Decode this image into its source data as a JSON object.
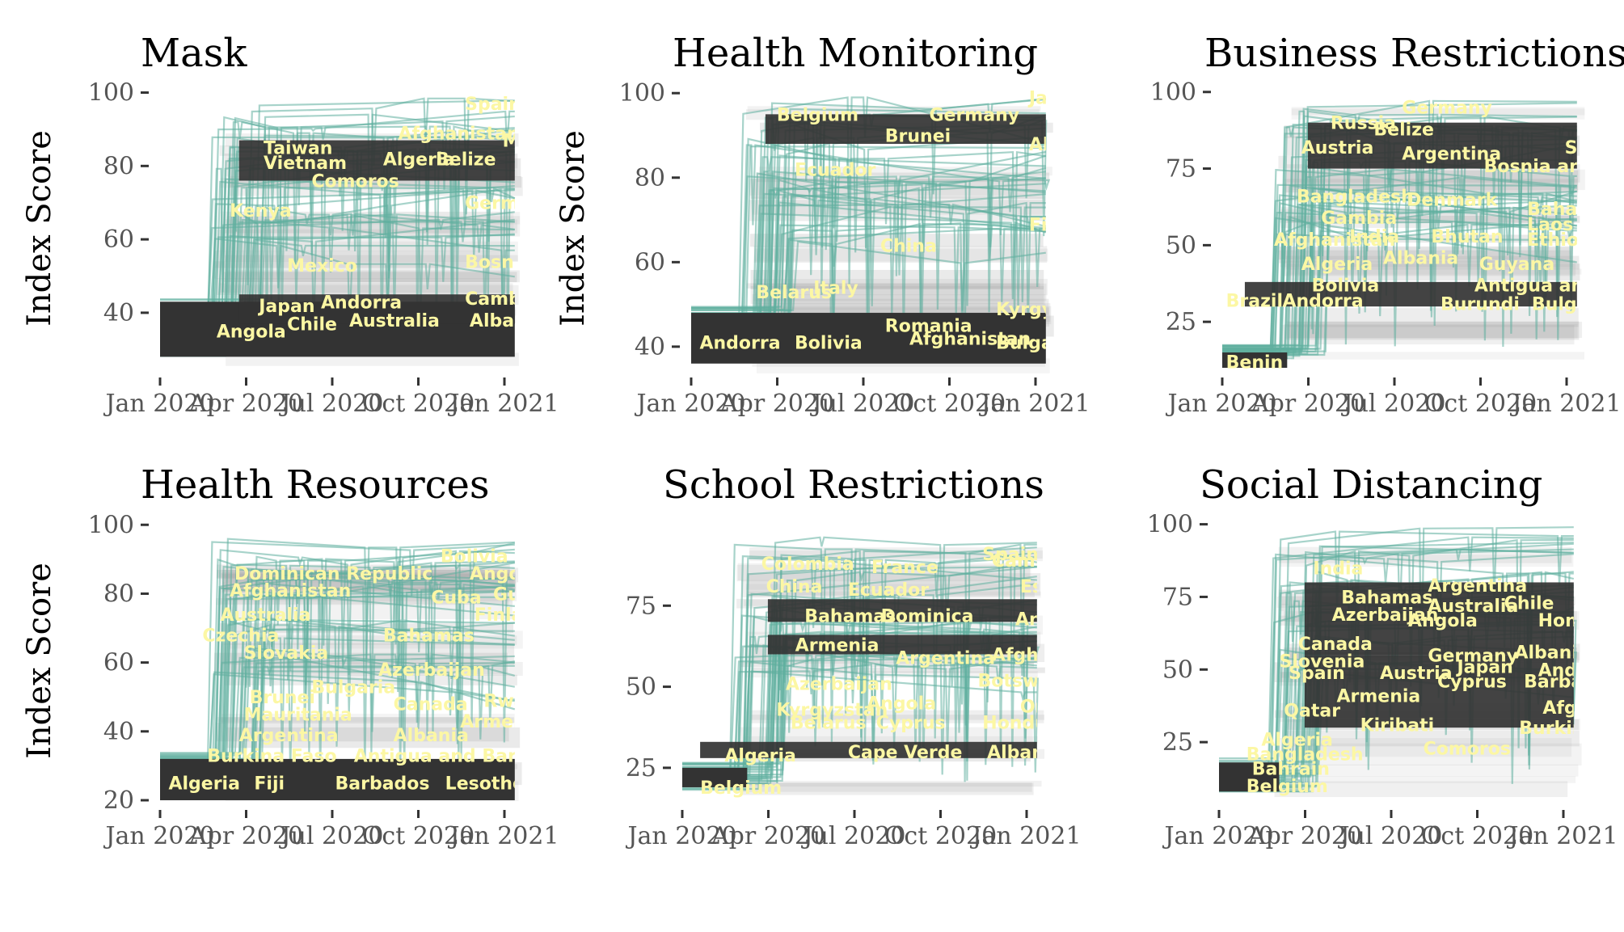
{
  "palette": {
    "band": "#333333",
    "line": "#5fae9f",
    "label": "#fcf7a4",
    "haze": "#9a9a9a"
  },
  "chart_data": [
    {
      "type": "line",
      "title": "Mask",
      "ylabel": "Index Score",
      "xlabel": "",
      "ylim": [
        25,
        101
      ],
      "yticks": [
        40,
        60,
        80,
        100
      ],
      "x_ticks": [
        "Jan 2020",
        "Apr 2020",
        "Jul 2020",
        "Oct 2020",
        "Jan 2021"
      ],
      "x_range": [
        "2020-01-01",
        "2021-01-12"
      ],
      "base": {
        "low": 28,
        "high": 43,
        "start": "2020-01-01",
        "end": "2021-01-12"
      },
      "bands": [
        {
          "low": 76,
          "high": 87,
          "start": "2020-03-25",
          "end": "2021-01-12"
        },
        {
          "low": 37,
          "high": 45,
          "start": "2020-03-25",
          "end": "2021-01-12"
        }
      ],
      "labels": [
        {
          "name": "Spain",
          "x": "2020-11-20",
          "y": 97
        },
        {
          "name": "Taiwan",
          "x": "2020-04-20",
          "y": 85
        },
        {
          "name": "Afghanistan",
          "x": "2020-09-10",
          "y": 89
        },
        {
          "name": "Myanmar",
          "x": "2020-12-30",
          "y": 87
        },
        {
          "name": "Vietnam",
          "x": "2020-04-20",
          "y": 81
        },
        {
          "name": "Algeria",
          "x": "2020-08-25",
          "y": 82
        },
        {
          "name": "Belize",
          "x": "2020-10-20",
          "y": 82
        },
        {
          "name": "Comoros",
          "x": "2020-06-10",
          "y": 76
        },
        {
          "name": "Germany",
          "x": "2020-11-20",
          "y": 70
        },
        {
          "name": "Kenya",
          "x": "2020-03-15",
          "y": 68
        },
        {
          "name": "Mexico",
          "x": "2020-05-15",
          "y": 53
        },
        {
          "name": "Bosnia and Herzegovina",
          "x": "2020-11-20",
          "y": 54
        },
        {
          "name": "Japan",
          "x": "2020-04-15",
          "y": 42
        },
        {
          "name": "Andorra",
          "x": "2020-06-20",
          "y": 43
        },
        {
          "name": "Cambodia",
          "x": "2020-11-20",
          "y": 44
        },
        {
          "name": "Chile",
          "x": "2020-05-15",
          "y": 37
        },
        {
          "name": "Australia",
          "x": "2020-07-20",
          "y": 38
        },
        {
          "name": "Albania",
          "x": "2020-11-25",
          "y": 38
        },
        {
          "name": "Angola",
          "x": "2020-03-01",
          "y": 35
        }
      ]
    },
    {
      "type": "line",
      "title": "Health Monitoring",
      "ylabel": "Index Score",
      "xlabel": "",
      "ylim": [
        35,
        101
      ],
      "yticks": [
        40,
        60,
        80,
        100
      ],
      "x_ticks": [
        "Jan 2020",
        "Apr 2020",
        "Jul 2020",
        "Oct 2020",
        "Jan 2021"
      ],
      "x_range": [
        "2020-01-01",
        "2021-01-12"
      ],
      "base": {
        "low": 36,
        "high": 48,
        "start": "2020-01-01",
        "end": "2021-01-12"
      },
      "bands": [
        {
          "low": 88,
          "high": 95,
          "start": "2020-03-20",
          "end": "2021-01-12"
        }
      ],
      "labels": [
        {
          "name": "Japan",
          "x": "2020-12-25",
          "y": 99
        },
        {
          "name": "Belgium",
          "x": "2020-04-01",
          "y": 95
        },
        {
          "name": "Germany",
          "x": "2020-09-10",
          "y": 95
        },
        {
          "name": "Brunei",
          "x": "2020-07-25",
          "y": 90
        },
        {
          "name": "Algeria",
          "x": "2020-12-25",
          "y": 88
        },
        {
          "name": "Ecuador",
          "x": "2020-04-20",
          "y": 82
        },
        {
          "name": "Finland",
          "x": "2020-12-25",
          "y": 69
        },
        {
          "name": "China",
          "x": "2020-07-20",
          "y": 64
        },
        {
          "name": "Belarus",
          "x": "2020-03-10",
          "y": 53
        },
        {
          "name": "Italy",
          "x": "2020-05-10",
          "y": 54
        },
        {
          "name": "Kyrgyzstan",
          "x": "2020-11-20",
          "y": 49
        },
        {
          "name": "Romania",
          "x": "2020-07-25",
          "y": 45
        },
        {
          "name": "Andorra",
          "x": "2020-01-10",
          "y": 41
        },
        {
          "name": "Bolivia",
          "x": "2020-04-20",
          "y": 41
        },
        {
          "name": "Afghanistan",
          "x": "2020-08-20",
          "y": 42
        },
        {
          "name": "Bulgaria",
          "x": "2020-11-20",
          "y": 41
        }
      ]
    },
    {
      "type": "line",
      "title": "Business Restrictions",
      "ylabel": "",
      "xlabel": "",
      "ylim": [
        10,
        101
      ],
      "yticks": [
        25,
        50,
        75,
        100
      ],
      "x_ticks": [
        "Jan 2020",
        "Apr 2020",
        "Jul 2020",
        "Oct 2020",
        "Jan 2021"
      ],
      "x_range": [
        "2020-01-01",
        "2021-01-12"
      ],
      "base": {
        "low": 10,
        "high": 15,
        "start": "2020-01-01",
        "end": "2020-03-10"
      },
      "bands": [
        {
          "low": 30,
          "high": 38,
          "start": "2020-01-25",
          "end": "2021-01-12"
        },
        {
          "low": 75,
          "high": 90,
          "start": "2020-04-01",
          "end": "2021-01-12"
        }
      ],
      "labels": [
        {
          "name": "Germany",
          "x": "2020-07-10",
          "y": 95
        },
        {
          "name": "Russia",
          "x": "2020-04-25",
          "y": 90
        },
        {
          "name": "Belize",
          "x": "2020-06-10",
          "y": 88
        },
        {
          "name": "Spain",
          "x": "2020-12-30",
          "y": 82
        },
        {
          "name": "Austria",
          "x": "2020-03-25",
          "y": 82
        },
        {
          "name": "Argentina",
          "x": "2020-07-10",
          "y": 80
        },
        {
          "name": "Bosnia and Herzegovina",
          "x": "2020-10-05",
          "y": 76
        },
        {
          "name": "Bangladesh",
          "x": "2020-03-20",
          "y": 66
        },
        {
          "name": "Denmark",
          "x": "2020-07-15",
          "y": 65
        },
        {
          "name": "Bahamas",
          "x": "2020-11-20",
          "y": 62
        },
        {
          "name": "Gambia",
          "x": "2020-04-15",
          "y": 59
        },
        {
          "name": "Laos",
          "x": "2020-11-20",
          "y": 57
        },
        {
          "name": "Afghanistan",
          "x": "2020-02-25",
          "y": 52
        },
        {
          "name": "India",
          "x": "2020-05-15",
          "y": 53
        },
        {
          "name": "Bhutan",
          "x": "2020-08-10",
          "y": 53
        },
        {
          "name": "Ethiopia",
          "x": "2020-11-20",
          "y": 52
        },
        {
          "name": "Algeria",
          "x": "2020-03-25",
          "y": 44
        },
        {
          "name": "Albania",
          "x": "2020-06-20",
          "y": 46
        },
        {
          "name": "Guyana",
          "x": "2020-09-30",
          "y": 44
        },
        {
          "name": "Bolivia",
          "x": "2020-04-05",
          "y": 37
        },
        {
          "name": "Antigua and Barbuda",
          "x": "2020-09-25",
          "y": 37
        },
        {
          "name": "Brazil",
          "x": "2020-01-05",
          "y": 32
        },
        {
          "name": "Andorra",
          "x": "2020-03-05",
          "y": 32
        },
        {
          "name": "Burundi",
          "x": "2020-08-20",
          "y": 31
        },
        {
          "name": "Bulgaria",
          "x": "2020-11-25",
          "y": 31
        },
        {
          "name": "Benin",
          "x": "2020-01-05",
          "y": 12
        }
      ]
    },
    {
      "type": "line",
      "title": "Health Resources",
      "ylabel": "Index Score",
      "xlabel": "",
      "ylim": [
        20,
        101
      ],
      "yticks": [
        20,
        40,
        60,
        80,
        100
      ],
      "x_ticks": [
        "Jan 2020",
        "Apr 2020",
        "Jul 2020",
        "Oct 2020",
        "Jan 2021"
      ],
      "x_range": [
        "2020-01-01",
        "2021-01-12"
      ],
      "base": {
        "low": 20,
        "high": 32,
        "start": "2020-01-01",
        "end": "2021-01-12"
      },
      "bands": [],
      "labels": [
        {
          "name": "Bolivia",
          "x": "2020-10-25",
          "y": 91
        },
        {
          "name": "Dominican Republic",
          "x": "2020-03-20",
          "y": 86
        },
        {
          "name": "Angola",
          "x": "2020-11-25",
          "y": 86
        },
        {
          "name": "Afghanistan",
          "x": "2020-03-15",
          "y": 81
        },
        {
          "name": "Cuba",
          "x": "2020-10-15",
          "y": 79
        },
        {
          "name": "Guatemala",
          "x": "2020-12-20",
          "y": 80
        },
        {
          "name": "Australia",
          "x": "2020-03-05",
          "y": 74
        },
        {
          "name": "Finland",
          "x": "2020-11-30",
          "y": 74
        },
        {
          "name": "Czechia",
          "x": "2020-02-15",
          "y": 68
        },
        {
          "name": "Bahamas",
          "x": "2020-08-25",
          "y": 68
        },
        {
          "name": "Slovakia",
          "x": "2020-03-30",
          "y": 63
        },
        {
          "name": "Azerbaijan",
          "x": "2020-08-20",
          "y": 58
        },
        {
          "name": "Bulgaria",
          "x": "2020-06-10",
          "y": 53
        },
        {
          "name": "Brunei",
          "x": "2020-04-05",
          "y": 50
        },
        {
          "name": "Canada",
          "x": "2020-09-05",
          "y": 48
        },
        {
          "name": "Rwanda",
          "x": "2020-12-10",
          "y": 49
        },
        {
          "name": "Mauritania",
          "x": "2020-03-30",
          "y": 45
        },
        {
          "name": "Armenia",
          "x": "2020-11-15",
          "y": 43
        },
        {
          "name": "Argentina",
          "x": "2020-03-25",
          "y": 39
        },
        {
          "name": "Albania",
          "x": "2020-09-05",
          "y": 39
        },
        {
          "name": "Burkina Faso",
          "x": "2020-02-20",
          "y": 33
        },
        {
          "name": "Antigua and Barbuda",
          "x": "2020-07-25",
          "y": 33
        },
        {
          "name": "Algeria",
          "x": "2020-01-10",
          "y": 25
        },
        {
          "name": "Fiji",
          "x": "2020-04-10",
          "y": 25
        },
        {
          "name": "Barbados",
          "x": "2020-07-05",
          "y": 25
        },
        {
          "name": "Lesotho",
          "x": "2020-10-30",
          "y": 25
        }
      ]
    },
    {
      "type": "line",
      "title": "School Restrictions",
      "ylabel": "",
      "xlabel": "",
      "ylim": [
        15,
        101
      ],
      "yticks": [
        25,
        50,
        75
      ],
      "x_ticks": [
        "Jan 2020",
        "Apr 2020",
        "Jul 2020",
        "Oct 2020",
        "Jan 2021"
      ],
      "x_range": [
        "2020-01-01",
        "2021-01-12"
      ],
      "base": {
        "low": 19,
        "high": 25,
        "start": "2020-01-01",
        "end": "2020-03-10"
      },
      "bands": [
        {
          "low": 28,
          "high": 33,
          "start": "2020-01-20",
          "end": "2021-01-12"
        },
        {
          "low": 70,
          "high": 77,
          "start": "2020-04-01",
          "end": "2021-01-12"
        },
        {
          "low": 60,
          "high": 66,
          "start": "2020-04-01",
          "end": "2021-01-12"
        }
      ],
      "labels": [
        {
          "name": "Spain",
          "x": "2020-11-15",
          "y": 91
        },
        {
          "name": "Colombia",
          "x": "2020-03-25",
          "y": 88
        },
        {
          "name": "France",
          "x": "2020-07-20",
          "y": 87
        },
        {
          "name": "Cambodia",
          "x": "2020-11-25",
          "y": 89
        },
        {
          "name": "China",
          "x": "2020-03-30",
          "y": 81
        },
        {
          "name": "Ecuador",
          "x": "2020-06-25",
          "y": 80
        },
        {
          "name": "Eswatini",
          "x": "2020-12-25",
          "y": 81
        },
        {
          "name": "Bahamas",
          "x": "2020-05-10",
          "y": 72
        },
        {
          "name": "Dominica",
          "x": "2020-07-30",
          "y": 72
        },
        {
          "name": "Andorra",
          "x": "2020-12-20",
          "y": 71
        },
        {
          "name": "Armenia",
          "x": "2020-04-30",
          "y": 63
        },
        {
          "name": "Argentina",
          "x": "2020-08-15",
          "y": 59
        },
        {
          "name": "Afghanistan",
          "x": "2020-11-25",
          "y": 60
        },
        {
          "name": "Azerbaijan",
          "x": "2020-04-20",
          "y": 51
        },
        {
          "name": "Botswana",
          "x": "2020-11-10",
          "y": 52
        },
        {
          "name": "Angola",
          "x": "2020-07-15",
          "y": 45
        },
        {
          "name": "Kyrgyzstan",
          "x": "2020-04-10",
          "y": 43
        },
        {
          "name": "Oman",
          "x": "2020-12-25",
          "y": 44
        },
        {
          "name": "Belarus",
          "x": "2020-04-25",
          "y": 39
        },
        {
          "name": "Cyprus",
          "x": "2020-07-25",
          "y": 39
        },
        {
          "name": "Honduras",
          "x": "2020-11-15",
          "y": 39
        },
        {
          "name": "Algeria",
          "x": "2020-02-15",
          "y": 29
        },
        {
          "name": "Cape Verde",
          "x": "2020-06-25",
          "y": 30
        },
        {
          "name": "Albania",
          "x": "2020-11-20",
          "y": 30
        },
        {
          "name": "Belgium",
          "x": "2020-01-20",
          "y": 19
        }
      ]
    },
    {
      "type": "line",
      "title": "Social Distancing",
      "ylabel": "",
      "xlabel": "",
      "ylim": [
        5,
        101
      ],
      "yticks": [
        25,
        50,
        75,
        100
      ],
      "x_ticks": [
        "Jan 2020",
        "Apr 2020",
        "Jul 2020",
        "Oct 2020",
        "Jan 2021"
      ],
      "x_range": [
        "2020-01-01",
        "2021-01-12"
      ],
      "base": {
        "low": 8,
        "high": 18,
        "start": "2020-01-01",
        "end": "2020-03-05"
      },
      "bands": [
        {
          "low": 55,
          "high": 80,
          "start": "2020-04-01",
          "end": "2021-01-12"
        },
        {
          "low": 30,
          "high": 55,
          "start": "2020-04-01",
          "end": "2021-01-12"
        }
      ],
      "labels": [
        {
          "name": "India",
          "x": "2020-04-10",
          "y": 85
        },
        {
          "name": "Argentina",
          "x": "2020-08-10",
          "y": 79
        },
        {
          "name": "Bahamas",
          "x": "2020-05-10",
          "y": 75
        },
        {
          "name": "Australia",
          "x": "2020-08-10",
          "y": 72
        },
        {
          "name": "Chile",
          "x": "2020-10-30",
          "y": 73
        },
        {
          "name": "Azerbaijan",
          "x": "2020-04-30",
          "y": 69
        },
        {
          "name": "Angola",
          "x": "2020-07-20",
          "y": 67
        },
        {
          "name": "Honduras",
          "x": "2020-12-05",
          "y": 67
        },
        {
          "name": "Canada",
          "x": "2020-03-25",
          "y": 59
        },
        {
          "name": "Germany",
          "x": "2020-08-10",
          "y": 55
        },
        {
          "name": "Albania",
          "x": "2020-11-10",
          "y": 56
        },
        {
          "name": "Slovenia",
          "x": "2020-03-05",
          "y": 53
        },
        {
          "name": "Spain",
          "x": "2020-03-15",
          "y": 49
        },
        {
          "name": "Austria",
          "x": "2020-06-20",
          "y": 49
        },
        {
          "name": "Japan",
          "x": "2020-09-10",
          "y": 51
        },
        {
          "name": "Andorra",
          "x": "2020-12-05",
          "y": 50
        },
        {
          "name": "Cyprus",
          "x": "2020-08-20",
          "y": 46
        },
        {
          "name": "Barbados",
          "x": "2020-11-20",
          "y": 46
        },
        {
          "name": "Armenia",
          "x": "2020-05-05",
          "y": 41
        },
        {
          "name": "Qatar",
          "x": "2020-03-10",
          "y": 36
        },
        {
          "name": "Afghanistan",
          "x": "2020-12-10",
          "y": 37
        },
        {
          "name": "Kiribati",
          "x": "2020-05-30",
          "y": 31
        },
        {
          "name": "Burkina Faso",
          "x": "2020-11-15",
          "y": 30
        },
        {
          "name": "Algeria",
          "x": "2020-02-15",
          "y": 26
        },
        {
          "name": "Comoros",
          "x": "2020-08-05",
          "y": 23
        },
        {
          "name": "Bangladesh",
          "x": "2020-01-30",
          "y": 21
        },
        {
          "name": "Bahrain",
          "x": "2020-02-05",
          "y": 16
        },
        {
          "name": "Belgium",
          "x": "2020-01-30",
          "y": 10
        }
      ]
    }
  ]
}
